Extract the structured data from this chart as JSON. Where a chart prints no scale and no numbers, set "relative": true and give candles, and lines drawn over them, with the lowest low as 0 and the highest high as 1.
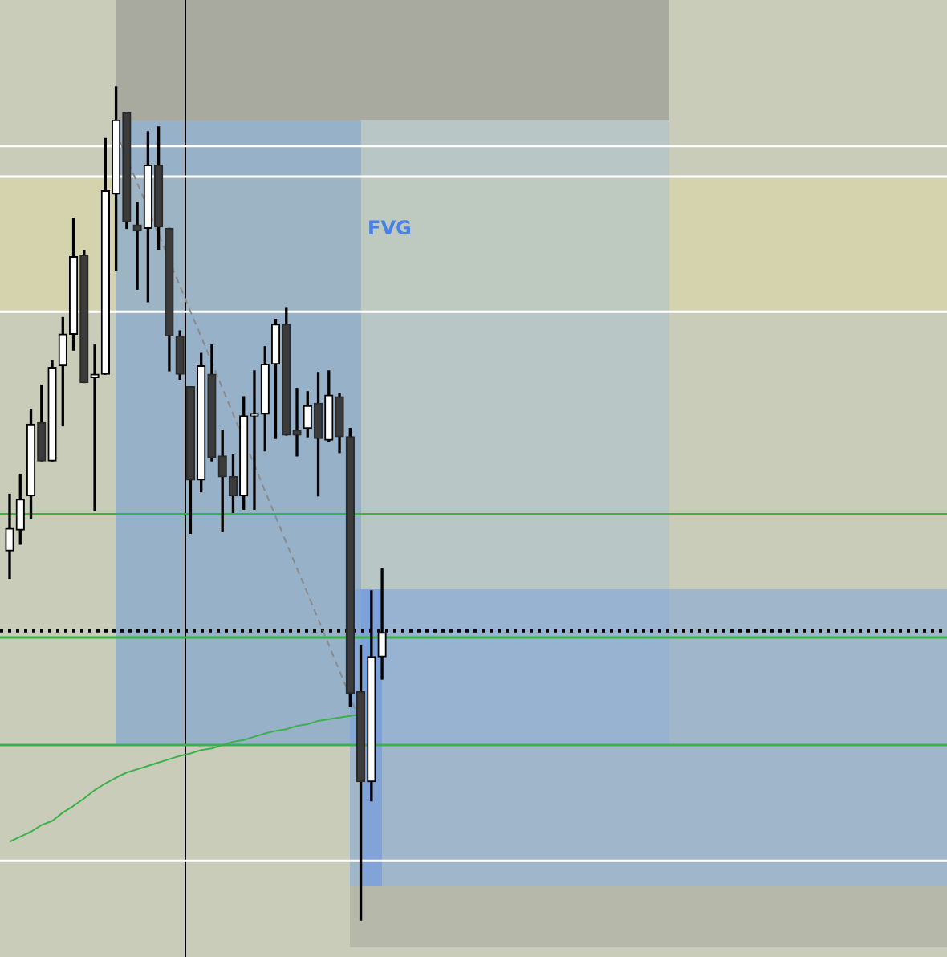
{
  "chart_data": {
    "type": "candlestick",
    "relative": true,
    "categories": [
      null,
      null,
      null,
      null,
      null,
      null,
      null,
      null,
      null,
      null,
      null,
      null,
      null,
      null,
      null,
      null,
      null,
      null,
      null,
      null,
      null,
      null,
      null,
      null,
      null,
      null,
      null,
      null,
      null,
      null,
      null,
      null,
      null,
      null,
      null,
      null
    ],
    "ohlc": [
      [
        0.443,
        0.511,
        0.41,
        0.47
      ],
      [
        0.468,
        0.534,
        0.451,
        0.505
      ],
      [
        0.509,
        0.613,
        0.482,
        0.595
      ],
      [
        0.597,
        0.642,
        0.551,
        0.551
      ],
      [
        0.551,
        0.671,
        0.551,
        0.663
      ],
      [
        0.665,
        0.723,
        0.593,
        0.703
      ],
      [
        0.703,
        0.842,
        0.684,
        0.796
      ],
      [
        0.798,
        0.803,
        0.645,
        0.645
      ],
      [
        0.651,
        0.69,
        0.491,
        0.655
      ],
      [
        0.655,
        0.938,
        0.655,
        0.875
      ],
      [
        0.871,
        1,
        0.78,
        0.96
      ],
      [
        0.969,
        0.969,
        0.83,
        0.838
      ],
      [
        0.834,
        0.861,
        0.757,
        0.827
      ],
      [
        0.83,
        0.946,
        0.742,
        0.906
      ],
      [
        0.906,
        0.952,
        0.805,
        0.832
      ],
      [
        0.83,
        0.83,
        0.659,
        0.701
      ],
      [
        0.701,
        0.707,
        0.649,
        0.655
      ],
      [
        0.64,
        0.64,
        0.464,
        0.528
      ],
      [
        0.528,
        0.68,
        0.514,
        0.665
      ],
      [
        0.655,
        0.69,
        0.551,
        0.555
      ],
      [
        0.557,
        0.588,
        0.466,
        0.532
      ],
      [
        0.532,
        0.559,
        0.489,
        0.509
      ],
      [
        0.509,
        0.628,
        0.493,
        0.605
      ],
      [
        0.605,
        0.659,
        0.493,
        0.607
      ],
      [
        0.607,
        0.688,
        0.563,
        0.667
      ],
      [
        0.667,
        0.721,
        0.578,
        0.715
      ],
      [
        0.715,
        0.734,
        0.582,
        0.582
      ],
      [
        0.588,
        0.638,
        0.557,
        0.582
      ],
      [
        0.59,
        0.634,
        0.58,
        0.617
      ],
      [
        0.62,
        0.657,
        0.509,
        0.578
      ],
      [
        0.576,
        0.659,
        0.574,
        0.63
      ],
      [
        0.628,
        0.632,
        0.561,
        0.58
      ],
      [
        0.58,
        0.59,
        0.256,
        0.272
      ],
      [
        0.274,
        0.329,
        0,
        0.166
      ],
      [
        0.166,
        0.395,
        0.143,
        0.316
      ],
      [
        0.316,
        0.422,
        0.289,
        0.345
      ]
    ],
    "series": [
      {
        "type": "line",
        "color": "#3cb04a",
        "line_style": "solid",
        "values": [
          0.094,
          0.1,
          0.106,
          0.114,
          0.119,
          0.129,
          0.137,
          0.146,
          0.156,
          0.164,
          0.171,
          0.177,
          0.181,
          0.185,
          0.189,
          0.193,
          0.197,
          0.2,
          0.204,
          0.206,
          0.21,
          0.214,
          0.216,
          0.22,
          0.224,
          0.227,
          0.229,
          0.233,
          0.235,
          0.239,
          0.241,
          0.243,
          0.245,
          0.247,
          null,
          null
        ]
      },
      {
        "type": "line",
        "color": "#8a8a8a",
        "line_style": "dashed",
        "values": [
          null,
          null,
          null,
          null,
          null,
          null,
          null,
          null,
          null,
          null,
          0.946,
          0.915,
          0.884,
          0.854,
          0.823,
          0.792,
          0.761,
          0.73,
          0.7,
          0.669,
          0.638,
          0.607,
          0.576,
          0.546,
          0.515,
          0.484,
          0.453,
          0.422,
          0.392,
          0.361,
          0.33,
          0.299,
          0.268,
          0.237,
          null,
          null
        ]
      }
    ],
    "ref_lines": [
      {
        "axis": "y",
        "value": 0.929,
        "color": "#ffffff",
        "line_style": "solid"
      },
      {
        "axis": "y",
        "value": 0.892,
        "color": "#ffffff",
        "line_style": "solid"
      },
      {
        "axis": "y",
        "value": 0.73,
        "color": "#ffffff",
        "line_style": "solid"
      },
      {
        "axis": "y",
        "value": 0.071,
        "color": "#ffffff",
        "line_style": "solid"
      },
      {
        "axis": "y",
        "value": 0.487,
        "color": "#3cb04a",
        "line_style": "solid"
      },
      {
        "axis": "y",
        "value": 0.339,
        "color": "#3cb04a",
        "line_style": "solid"
      },
      {
        "axis": "y",
        "value": 0.21,
        "color": "#3cb04a",
        "line_style": "solid"
      },
      {
        "axis": "y",
        "value": 0.347,
        "color": "#000000",
        "line_style": "dotted"
      }
    ],
    "annotations": [
      "FVG"
    ]
  }
}
